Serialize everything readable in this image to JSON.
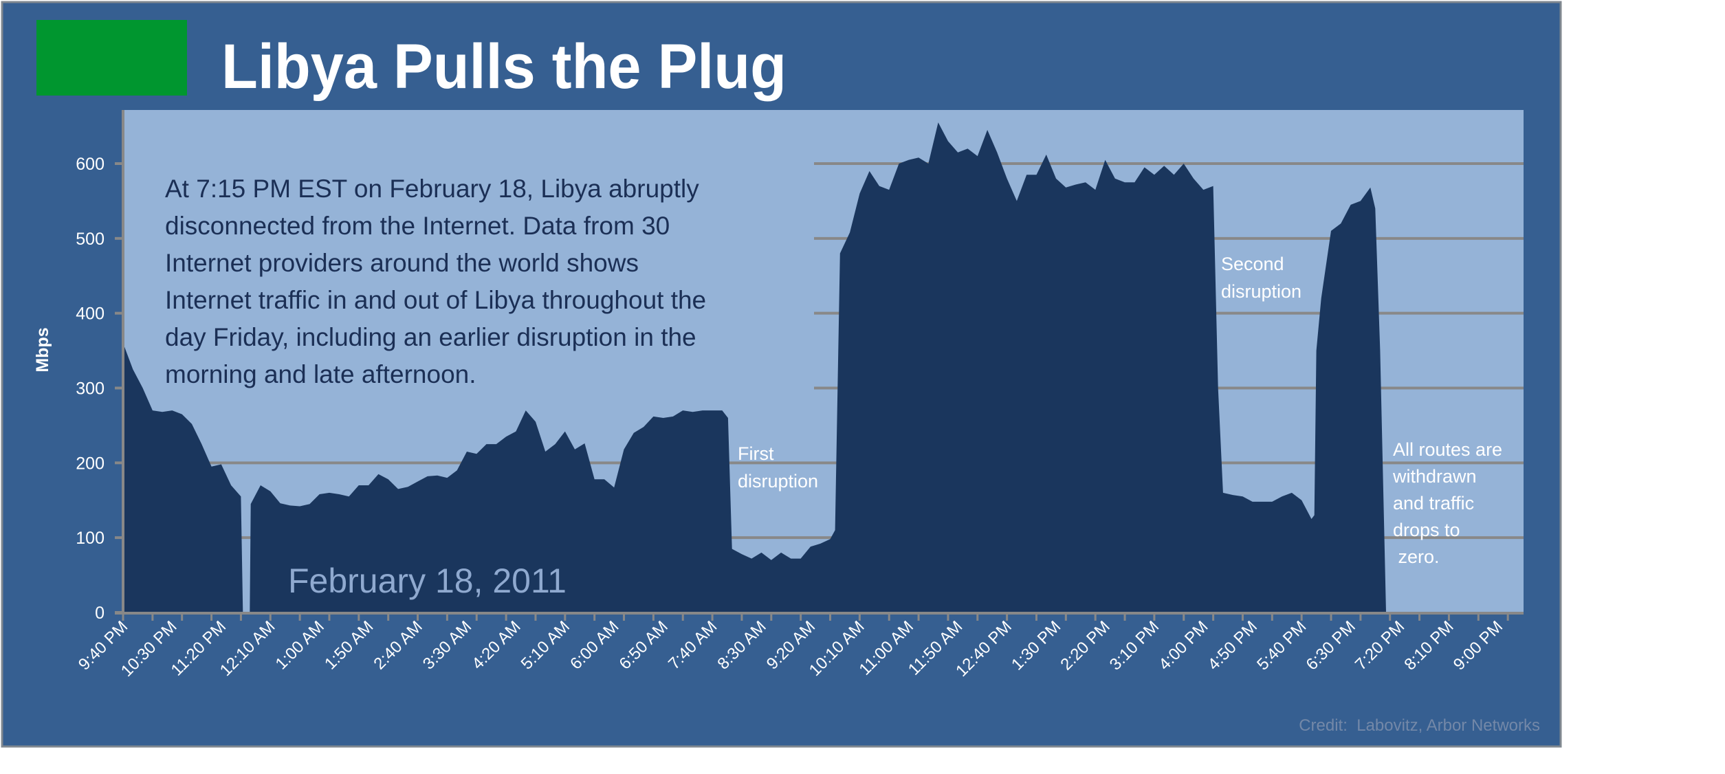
{
  "title": "Libya Pulls the Plug",
  "colors": {
    "frame_background": "#365f91",
    "plot_background": "#95b3d7",
    "area_fill": "#1a365d",
    "title_badge": "#00962f",
    "gridline": "#888888",
    "paragraph_text": "#1b2f55",
    "date_text": "#8fa9cf",
    "credit_text": "#7388a8"
  },
  "description": [
    "At 7:15 PM EST on February 18, Libya abruptly",
    "disconnected from the Internet. Data from 30",
    "Internet providers around the world shows",
    "Internet traffic in and out of Libya throughout the",
    "day Friday, including an earlier disruption in the",
    "morning and late afternoon."
  ],
  "date_label": "February 18, 2011",
  "annotations": {
    "first": [
      "First",
      "disruption"
    ],
    "second": [
      "Second",
      "disruption"
    ],
    "final": [
      "All routes are",
      "withdrawn",
      "and traffic",
      "drops to",
      " zero."
    ]
  },
  "credit": "Credit:  Labovitz, Arbor Networks",
  "chart_data": {
    "type": "area",
    "title": "Libya Pulls the Plug",
    "xlabel": "",
    "ylabel": "Mbps",
    "ylim": [
      0,
      670
    ],
    "xlim": [
      "9:40 PM",
      "9:26 PM"
    ],
    "yticks": [
      0,
      100,
      200,
      300,
      400,
      500,
      600
    ],
    "xticks": [
      "9:40 PM",
      "10:30 PM",
      "11:20 PM",
      "12:10 AM",
      "1:00 AM",
      "1:50 AM",
      "2:40 AM",
      "3:30 AM",
      "4:20 AM",
      "5:10 AM",
      "6:00 AM",
      "6:50 AM",
      "7:40 AM",
      "8:30 AM",
      "9:20 AM",
      "10:10 AM",
      "11:00 AM",
      "11:50 AM",
      "12:40 PM",
      "1:30 PM",
      "2:20 PM",
      "3:10 PM",
      "4:00 PM",
      "4:50 PM",
      "5:40 PM",
      "6:30 PM",
      "7:20 PM",
      "8:10 PM",
      "9:00 PM"
    ],
    "grid": true,
    "series": [
      {
        "points": [
          [
            "9:40 PM",
            360
          ],
          [
            "9:50 PM",
            325
          ],
          [
            "10:00 PM",
            300
          ],
          [
            "10:10 PM",
            270
          ],
          [
            "10:20 PM",
            268
          ],
          [
            "10:30 PM",
            270
          ],
          [
            "10:40 PM",
            265
          ],
          [
            "10:50 PM",
            252
          ],
          [
            "11:00 PM",
            225
          ],
          [
            "11:10 PM",
            195
          ],
          [
            "11:20 PM",
            198
          ],
          [
            "11:30 PM",
            170
          ],
          [
            "11:40 PM",
            155
          ],
          [
            "11:42 PM",
            0
          ],
          [
            "11:49 PM",
            0
          ],
          [
            "11:50 PM",
            145
          ],
          [
            "12:00 AM",
            170
          ],
          [
            "12:10 AM",
            162
          ],
          [
            "12:20 AM",
            146
          ],
          [
            "12:30 AM",
            143
          ],
          [
            "12:40 AM",
            142
          ],
          [
            "12:50 AM",
            145
          ],
          [
            "1:00 AM",
            158
          ],
          [
            "1:10 AM",
            160
          ],
          [
            "1:20 AM",
            158
          ],
          [
            "1:30 AM",
            155
          ],
          [
            "1:40 AM",
            170
          ],
          [
            "1:50 AM",
            170
          ],
          [
            "2:00 AM",
            185
          ],
          [
            "2:10 AM",
            178
          ],
          [
            "2:20 AM",
            165
          ],
          [
            "2:30 AM",
            168
          ],
          [
            "2:40 AM",
            175
          ],
          [
            "2:50 AM",
            182
          ],
          [
            "3:00 AM",
            183
          ],
          [
            "3:10 AM",
            180
          ],
          [
            "3:20 AM",
            190
          ],
          [
            "3:30 AM",
            215
          ],
          [
            "3:40 AM",
            212
          ],
          [
            "3:50 AM",
            225
          ],
          [
            "4:00 AM",
            225
          ],
          [
            "4:10 AM",
            235
          ],
          [
            "4:20 AM",
            242
          ],
          [
            "4:30 AM",
            270
          ],
          [
            "4:40 AM",
            255
          ],
          [
            "4:50 AM",
            215
          ],
          [
            "5:00 AM",
            225
          ],
          [
            "5:10 AM",
            242
          ],
          [
            "5:20 AM",
            218
          ],
          [
            "5:30 AM",
            226
          ],
          [
            "5:40 AM",
            178
          ],
          [
            "5:50 AM",
            178
          ],
          [
            "6:00 AM",
            167
          ],
          [
            "6:10 AM",
            218
          ],
          [
            "6:20 AM",
            240
          ],
          [
            "6:30 AM",
            248
          ],
          [
            "6:40 AM",
            262
          ],
          [
            "6:50 AM",
            260
          ],
          [
            "7:00 AM",
            262
          ],
          [
            "7:10 AM",
            270
          ],
          [
            "7:20 AM",
            268
          ],
          [
            "7:30 AM",
            270
          ],
          [
            "7:40 AM",
            270
          ],
          [
            "7:50 AM",
            270
          ],
          [
            "7:56 AM",
            260
          ],
          [
            "8:00 AM",
            85
          ],
          [
            "8:10 AM",
            78
          ],
          [
            "8:20 AM",
            72
          ],
          [
            "8:30 AM",
            80
          ],
          [
            "8:40 AM",
            70
          ],
          [
            "8:50 AM",
            80
          ],
          [
            "9:00 AM",
            72
          ],
          [
            "9:10 AM",
            72
          ],
          [
            "9:20 AM",
            88
          ],
          [
            "9:30 AM",
            92
          ],
          [
            "9:40 AM",
            98
          ],
          [
            "9:45 AM",
            110
          ],
          [
            "9:50 AM",
            480
          ],
          [
            "10:00 AM",
            508
          ],
          [
            "10:10 AM",
            560
          ],
          [
            "10:20 AM",
            590
          ],
          [
            "10:30 AM",
            570
          ],
          [
            "10:40 AM",
            565
          ],
          [
            "10:50 AM",
            600
          ],
          [
            "11:00 AM",
            605
          ],
          [
            "11:10 AM",
            608
          ],
          [
            "11:20 AM",
            600
          ],
          [
            "11:30 AM",
            655
          ],
          [
            "11:40 AM",
            630
          ],
          [
            "11:50 AM",
            615
          ],
          [
            "12:00 PM",
            620
          ],
          [
            "12:10 PM",
            610
          ],
          [
            "12:20 PM",
            645
          ],
          [
            "12:30 PM",
            615
          ],
          [
            "12:40 PM",
            580
          ],
          [
            "12:50 PM",
            550
          ],
          [
            "1:00 PM",
            585
          ],
          [
            "1:10 PM",
            585
          ],
          [
            "1:20 PM",
            612
          ],
          [
            "1:30 PM",
            580
          ],
          [
            "1:40 PM",
            568
          ],
          [
            "1:50 PM",
            572
          ],
          [
            "2:00 PM",
            575
          ],
          [
            "2:10 PM",
            565
          ],
          [
            "2:20 PM",
            605
          ],
          [
            "2:30 PM",
            580
          ],
          [
            "2:40 PM",
            575
          ],
          [
            "2:50 PM",
            575
          ],
          [
            "3:00 PM",
            595
          ],
          [
            "3:10 PM",
            585
          ],
          [
            "3:20 PM",
            597
          ],
          [
            "3:30 PM",
            585
          ],
          [
            "3:40 PM",
            600
          ],
          [
            "3:50 PM",
            580
          ],
          [
            "4:00 PM",
            565
          ],
          [
            "4:10 PM",
            570
          ],
          [
            "4:15 PM",
            300
          ],
          [
            "4:20 PM",
            160
          ],
          [
            "4:30 PM",
            157
          ],
          [
            "4:40 PM",
            155
          ],
          [
            "4:50 PM",
            148
          ],
          [
            "5:00 PM",
            148
          ],
          [
            "5:10 PM",
            148
          ],
          [
            "5:20 PM",
            155
          ],
          [
            "5:30 PM",
            160
          ],
          [
            "5:40 PM",
            150
          ],
          [
            "5:50 PM",
            125
          ],
          [
            "5:53 PM",
            130
          ],
          [
            "5:55 PM",
            350
          ],
          [
            "6:00 PM",
            420
          ],
          [
            "6:10 PM",
            510
          ],
          [
            "6:20 PM",
            520
          ],
          [
            "6:30 PM",
            545
          ],
          [
            "6:40 PM",
            550
          ],
          [
            "6:50 PM",
            568
          ],
          [
            "6:55 PM",
            540
          ],
          [
            "7:00 PM",
            350
          ],
          [
            "7:06 PM",
            0
          ]
        ]
      }
    ]
  }
}
